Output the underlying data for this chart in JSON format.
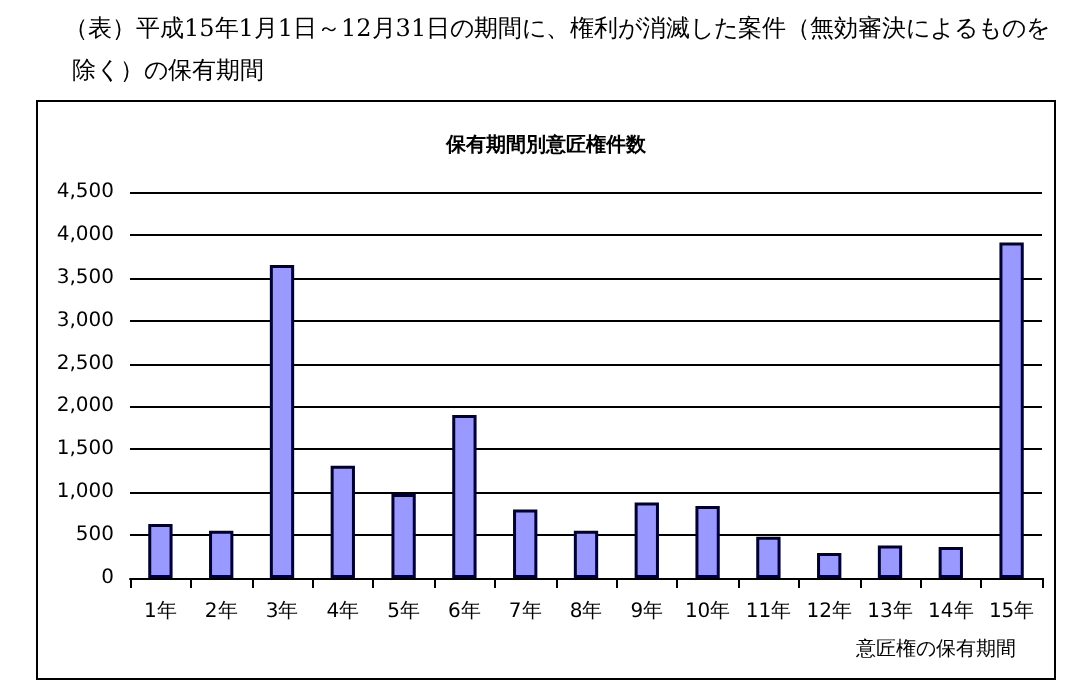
{
  "chart_data": {
    "type": "bar",
    "title": "（表）平成15年1月1日～12月31日の期間に、権利が消滅した案件（無効審決によるものを除く）の保有期間",
    "subtitle": "保有期間別意匠権件数",
    "xlabel": "意匠権の保有期間",
    "categories": [
      "1年",
      "2年",
      "3年",
      "4年",
      "5年",
      "6年",
      "7年",
      "8年",
      "9年",
      "10年",
      "11年",
      "12年",
      "13年",
      "14年",
      "15年"
    ],
    "values": [
      630,
      550,
      3650,
      1310,
      980,
      1900,
      800,
      550,
      880,
      840,
      480,
      290,
      380,
      360,
      3910
    ],
    "color": "#9999ff",
    "ylim": [
      0,
      4500
    ],
    "yticks": [
      {
        "value": 0,
        "label": "0"
      },
      {
        "value": 500,
        "label": "500"
      },
      {
        "value": 1000,
        "label": "1,000"
      },
      {
        "value": 1500,
        "label": "1,500"
      },
      {
        "value": 2000,
        "label": "2,000"
      },
      {
        "value": 2500,
        "label": "2,500"
      },
      {
        "value": 3000,
        "label": "3,000"
      },
      {
        "value": 3500,
        "label": "3,500"
      },
      {
        "value": 4000,
        "label": "4,000"
      },
      {
        "value": 4500,
        "label": "4,500"
      }
    ],
    "grid": "y"
  }
}
